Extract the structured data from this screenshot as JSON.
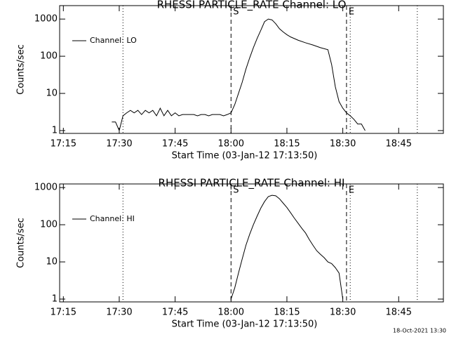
{
  "timestamp": "18-Oct-2021 13:30",
  "chart_data": [
    {
      "type": "line",
      "title": "RHESSI PARTICLE_RATE Channel: LO",
      "x_label": "Start Time (03-Jan-12 17:13:50)",
      "y_label": "Counts/sec",
      "log_y": true,
      "legend": "upper left",
      "xlim": [
        "17:14",
        "18:57"
      ],
      "xticks": [
        "17:15",
        "17:30",
        "17:45",
        "18:00",
        "18:15",
        "18:30",
        "18:45"
      ],
      "ylim": [
        0.84,
        2300
      ],
      "yticks": [
        1,
        10,
        100,
        1000
      ],
      "markers": [
        {
          "x": "17:31",
          "style": "dotted"
        },
        {
          "x": "18:00",
          "style": "dashed",
          "label": "S"
        },
        {
          "x": "18:31",
          "style": "dashed",
          "label": "E"
        },
        {
          "x": "18:32",
          "style": "dotted"
        },
        {
          "x": "18:50",
          "style": "dotted"
        }
      ],
      "x": [
        "17:28",
        "17:29",
        "17:30",
        "17:31",
        "17:32",
        "17:33",
        "17:34",
        "17:35",
        "17:36",
        "17:37",
        "17:38",
        "17:39",
        "17:40",
        "17:41",
        "17:42",
        "17:43",
        "17:44",
        "17:45",
        "17:46",
        "17:47",
        "17:48",
        "17:49",
        "17:50",
        "17:51",
        "17:52",
        "17:53",
        "17:54",
        "17:55",
        "17:56",
        "17:57",
        "17:58",
        "17:59",
        "18:00",
        "18:01",
        "18:02",
        "18:03",
        "18:04",
        "18:05",
        "18:06",
        "18:07",
        "18:08",
        "18:09",
        "18:10",
        "18:11",
        "18:12",
        "18:13",
        "18:14",
        "18:15",
        "18:16",
        "18:18",
        "18:20",
        "18:22",
        "18:24",
        "18:26",
        "18:27",
        "18:28",
        "18:29",
        "18:30",
        "18:31",
        "18:32",
        "18:33",
        "18:34",
        "18:35",
        "18:36"
      ],
      "series": [
        {
          "name": "Channel: LO",
          "color": "#000000",
          "values": [
            1.7,
            1.7,
            1,
            2.5,
            3,
            3.5,
            3,
            3.5,
            2.7,
            3.5,
            3,
            3.5,
            2.5,
            4,
            2.5,
            3.5,
            2.5,
            3,
            2.5,
            2.7,
            2.7,
            2.7,
            2.7,
            2.5,
            2.7,
            2.7,
            2.5,
            2.7,
            2.7,
            2.7,
            2.5,
            2.7,
            3,
            5,
            10,
            20,
            45,
            90,
            170,
            300,
            500,
            850,
            1000,
            950,
            750,
            550,
            450,
            380,
            330,
            270,
            230,
            200,
            170,
            150,
            60,
            15,
            6,
            4,
            3,
            2.5,
            2,
            1.5,
            1.5,
            1
          ]
        }
      ]
    },
    {
      "type": "line",
      "title": "RHESSI PARTICLE_RATE Channel: HI",
      "x_label": "Start Time (03-Jan-12 17:13:50)",
      "y_label": "Counts/sec",
      "log_y": true,
      "legend": "upper left",
      "xlim": [
        "17:14",
        "18:57"
      ],
      "xticks": [
        "17:15",
        "17:30",
        "17:45",
        "18:00",
        "18:15",
        "18:30",
        "18:45"
      ],
      "ylim": [
        0.84,
        1250
      ],
      "yticks": [
        1,
        10,
        100,
        1000
      ],
      "markers": [
        {
          "x": "17:31",
          "style": "dotted"
        },
        {
          "x": "18:00",
          "style": "dashed",
          "label": "S"
        },
        {
          "x": "18:31",
          "style": "dashed",
          "label": "E"
        },
        {
          "x": "18:32",
          "style": "dotted"
        },
        {
          "x": "18:50",
          "style": "dotted"
        }
      ],
      "x": [
        "18:00",
        "18:01",
        "18:02",
        "18:03",
        "18:04",
        "18:05",
        "18:06",
        "18:07",
        "18:08",
        "18:09",
        "18:10",
        "18:11",
        "18:12",
        "18:13",
        "18:14",
        "18:15",
        "18:16",
        "18:17",
        "18:18",
        "18:19",
        "18:20",
        "18:21",
        "18:22",
        "18:23",
        "18:24",
        "18:25",
        "18:26",
        "18:27",
        "18:28",
        "18:29",
        "18:30"
      ],
      "series": [
        {
          "name": "Channel: HI",
          "color": "#000000",
          "values": [
            1,
            2,
            5,
            12,
            28,
            55,
            100,
            170,
            280,
            420,
            570,
            620,
            600,
            500,
            380,
            290,
            210,
            150,
            110,
            80,
            60,
            40,
            28,
            20,
            16,
            13,
            10,
            9,
            7,
            5,
            1
          ]
        }
      ]
    }
  ]
}
